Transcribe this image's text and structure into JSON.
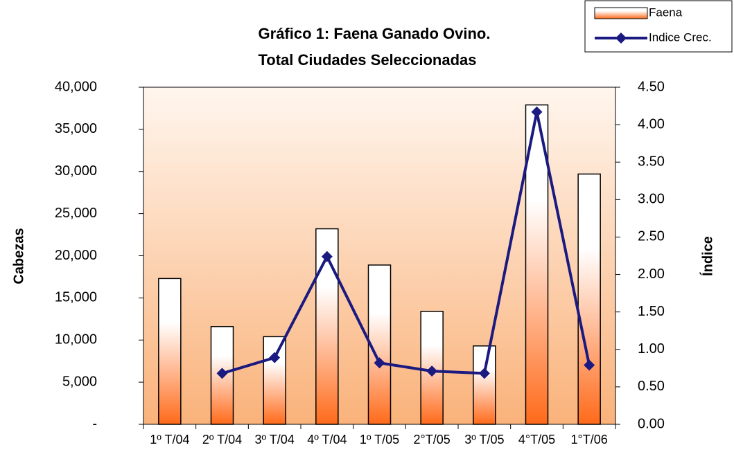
{
  "chart_data": {
    "type": "bar_line",
    "title": [
      "Gráfico 1: Faena Ganado Ovino.",
      "Total Ciudades Seleccionadas"
    ],
    "ylabel": "Cabezas",
    "y2label": "Índice",
    "categories": [
      "1º T/04",
      "2º T/04",
      "3º T/04",
      "4º T/04",
      "1º T/05",
      "2°T/05",
      "3º T/05",
      "4°T/05",
      "1°T/06"
    ],
    "series": [
      {
        "name": "Faena",
        "type": "bar",
        "color": "#ff6a1a",
        "values": [
          17300,
          11600,
          10400,
          23200,
          18900,
          13400,
          9300,
          37900,
          29700
        ]
      },
      {
        "name": "Indice Crec.",
        "type": "line",
        "axis": "y2",
        "color": "#1a1a80",
        "values": [
          null,
          0.68,
          0.89,
          2.24,
          0.82,
          0.71,
          0.68,
          4.17,
          0.79
        ]
      }
    ],
    "ylim": [
      0,
      40000
    ],
    "yticks": [
      {
        "value": 0,
        "label": "-"
      },
      {
        "value": 5000,
        "label": "5,000"
      },
      {
        "value": 10000,
        "label": "10,000"
      },
      {
        "value": 15000,
        "label": "15,000"
      },
      {
        "value": 20000,
        "label": "20,000"
      },
      {
        "value": 25000,
        "label": "25,000"
      },
      {
        "value": 30000,
        "label": "30,000"
      },
      {
        "value": 35000,
        "label": "35,000"
      },
      {
        "value": 40000,
        "label": "40,000"
      }
    ],
    "y2lim": [
      0,
      4.5
    ],
    "y2ticks": [
      {
        "value": 0,
        "label": "0.00"
      },
      {
        "value": 0.5,
        "label": "0.50"
      },
      {
        "value": 1,
        "label": "1.00"
      },
      {
        "value": 1.5,
        "label": "1.50"
      },
      {
        "value": 2,
        "label": "2.00"
      },
      {
        "value": 2.5,
        "label": "2.50"
      },
      {
        "value": 3,
        "label": "3.00"
      },
      {
        "value": 3.5,
        "label": "3.50"
      },
      {
        "value": 4,
        "label": "4.00"
      },
      {
        "value": 4.5,
        "label": "4.50"
      }
    ],
    "legend": "top-right",
    "grid": false
  }
}
